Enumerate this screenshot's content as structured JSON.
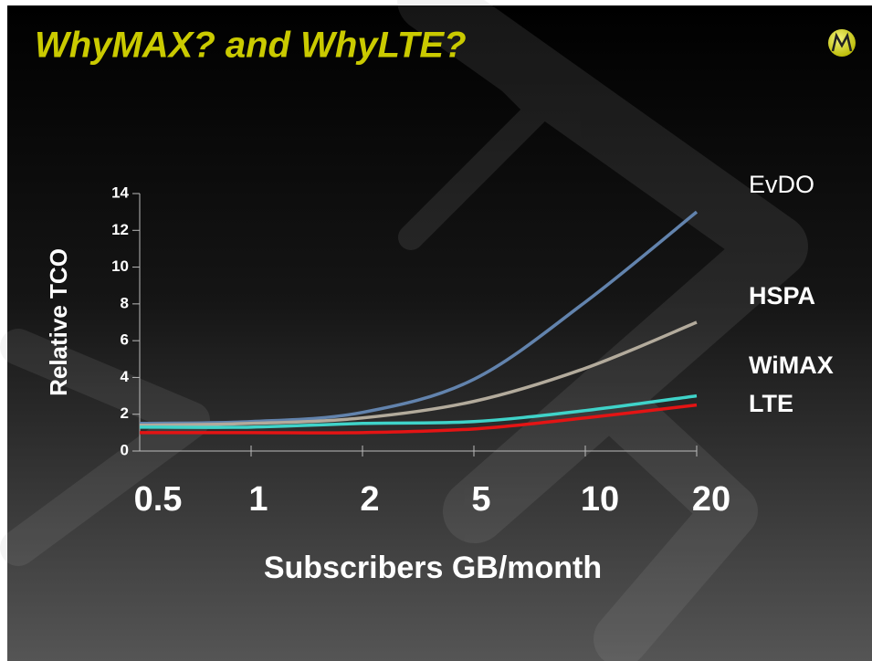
{
  "chart_data": {
    "type": "line",
    "title": "WhyMAX? and WhyLTE?",
    "x_label": "Subscribers GB/month",
    "y_label": "Relative TCO",
    "categories": [
      "0.5",
      "1",
      "2",
      "5",
      "10",
      "20"
    ],
    "ylim": [
      0,
      14
    ],
    "yticks": [
      0,
      2,
      4,
      6,
      8,
      10,
      12,
      14
    ],
    "series": [
      {
        "name": "EvDO",
        "color": "#6283ad",
        "values": [
          1.5,
          1.6,
          2.1,
          3.9,
          8.1,
          13.0
        ]
      },
      {
        "name": "HSPA",
        "color": "#b3ab9c",
        "values": [
          1.4,
          1.5,
          1.8,
          2.7,
          4.5,
          7.0
        ]
      },
      {
        "name": "WiMAX",
        "color": "#3fd3c9",
        "values": [
          1.3,
          1.3,
          1.5,
          1.6,
          2.2,
          3.0
        ]
      },
      {
        "name": "LTE",
        "color": "#e41414",
        "values": [
          1.0,
          1.0,
          1.0,
          1.2,
          1.8,
          2.5
        ]
      }
    ]
  }
}
